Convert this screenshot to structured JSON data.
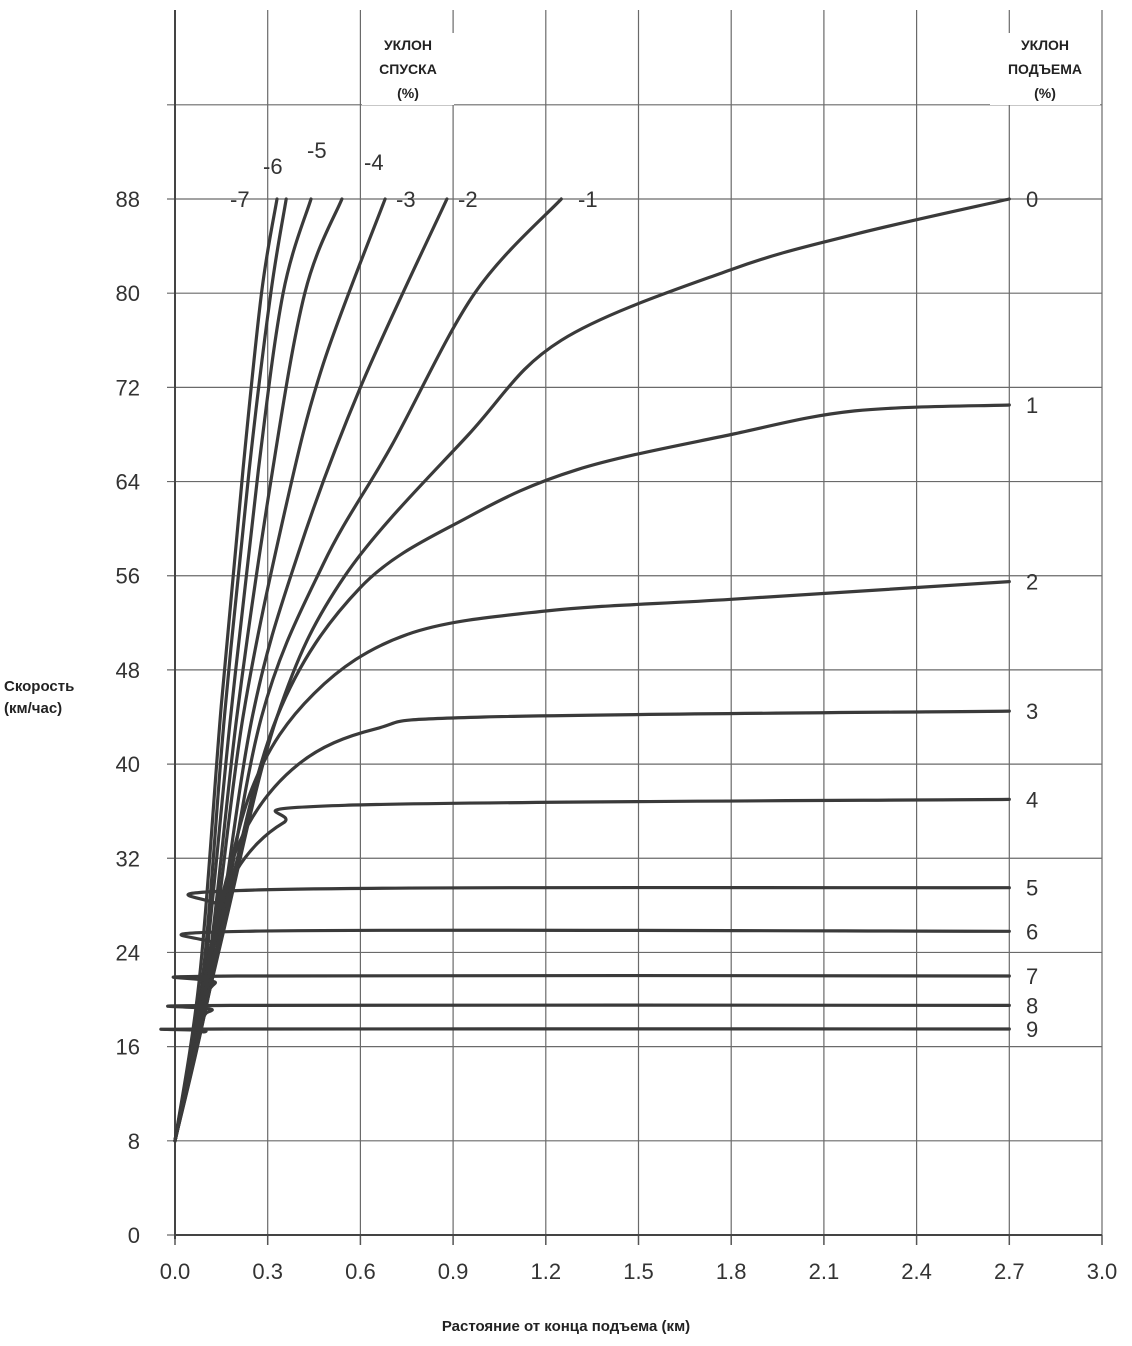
{
  "chart_data": {
    "type": "line",
    "title": "",
    "xlabel": "Растояние от конца подъема (км)",
    "ylabel": [
      "Скорость",
      "(км/час)"
    ],
    "xlim": [
      0,
      3.0
    ],
    "ylim": [
      0,
      96
    ],
    "x_ticks": [
      "0.0",
      "0.3",
      "0.6",
      "0.9",
      "1.2",
      "1.5",
      "1.8",
      "2.1",
      "2.4",
      "2.7",
      "3.0"
    ],
    "y_ticks": [
      "0",
      "8",
      "16",
      "24",
      "32",
      "40",
      "48",
      "56",
      "64",
      "72",
      "80",
      "88"
    ],
    "grid": true,
    "annotations": {
      "descent_header": [
        "УКЛОН",
        "СПУСКА",
        "(%)"
      ],
      "ascent_header": [
        "УКЛОН",
        "ПОДЪЕМА",
        "(%)"
      ]
    },
    "series": [
      {
        "name": "-7",
        "group": "descent",
        "points": [
          [
            0,
            8
          ],
          [
            0.08,
            22
          ],
          [
            0.15,
            45
          ],
          [
            0.22,
            65
          ],
          [
            0.28,
            80
          ],
          [
            0.33,
            88
          ]
        ]
      },
      {
        "name": "-6",
        "group": "descent",
        "points": [
          [
            0,
            8
          ],
          [
            0.09,
            22
          ],
          [
            0.16,
            44
          ],
          [
            0.24,
            65
          ],
          [
            0.31,
            80
          ],
          [
            0.36,
            88
          ]
        ]
      },
      {
        "name": "-5",
        "group": "descent",
        "points": [
          [
            0,
            8
          ],
          [
            0.09,
            21
          ],
          [
            0.18,
            44
          ],
          [
            0.27,
            65
          ],
          [
            0.35,
            80
          ],
          [
            0.44,
            88
          ]
        ]
      },
      {
        "name": "-4",
        "group": "descent",
        "points": [
          [
            0,
            8
          ],
          [
            0.1,
            21
          ],
          [
            0.2,
            44
          ],
          [
            0.31,
            64
          ],
          [
            0.42,
            80
          ],
          [
            0.54,
            88
          ]
        ]
      },
      {
        "name": "-3",
        "group": "descent",
        "points": [
          [
            0,
            8
          ],
          [
            0.11,
            22
          ],
          [
            0.22,
            44
          ],
          [
            0.36,
            62
          ],
          [
            0.48,
            74
          ],
          [
            0.68,
            88
          ]
        ]
      },
      {
        "name": "-2",
        "group": "descent",
        "points": [
          [
            0,
            8
          ],
          [
            0.12,
            22
          ],
          [
            0.25,
            44
          ],
          [
            0.4,
            58
          ],
          [
            0.6,
            72
          ],
          [
            0.88,
            88
          ]
        ]
      },
      {
        "name": "-1",
        "group": "descent",
        "points": [
          [
            0,
            8
          ],
          [
            0.13,
            23
          ],
          [
            0.28,
            44
          ],
          [
            0.48,
            57
          ],
          [
            0.7,
            67
          ],
          [
            0.97,
            80
          ],
          [
            1.25,
            88
          ]
        ]
      },
      {
        "name": "0",
        "group": "ascent",
        "points": [
          [
            0,
            8
          ],
          [
            0.15,
            25
          ],
          [
            0.33,
            44
          ],
          [
            0.55,
            56
          ],
          [
            0.95,
            68
          ],
          [
            1.25,
            76
          ],
          [
            1.8,
            82
          ],
          [
            2.2,
            85
          ],
          [
            2.7,
            88
          ]
        ]
      },
      {
        "name": "1",
        "group": "ascent",
        "points": [
          [
            0,
            8
          ],
          [
            0.15,
            26
          ],
          [
            0.33,
            44
          ],
          [
            0.6,
            55
          ],
          [
            0.95,
            61
          ],
          [
            1.3,
            65
          ],
          [
            1.8,
            68
          ],
          [
            2.2,
            70
          ],
          [
            2.7,
            70.5
          ]
        ]
      },
      {
        "name": "2",
        "group": "ascent",
        "points": [
          [
            0,
            8
          ],
          [
            0.13,
            25
          ],
          [
            0.25,
            38
          ],
          [
            0.45,
            46
          ],
          [
            0.75,
            51
          ],
          [
            1.2,
            53
          ],
          [
            1.8,
            54
          ],
          [
            2.7,
            55.5
          ]
        ]
      },
      {
        "name": "3",
        "group": "ascent",
        "points": [
          [
            0,
            8
          ],
          [
            0.12,
            25
          ],
          [
            0.22,
            34
          ],
          [
            0.4,
            40
          ],
          [
            0.65,
            43
          ],
          [
            1.0,
            44
          ],
          [
            2.7,
            44.5
          ]
        ]
      },
      {
        "name": "4",
        "group": "ascent",
        "points": [
          [
            0,
            8
          ],
          [
            0.12,
            25
          ],
          [
            0.2,
            31
          ],
          [
            0.35,
            35
          ],
          [
            0.55,
            36.5
          ],
          [
            2.7,
            37
          ]
        ]
      },
      {
        "name": "5",
        "group": "ascent",
        "points": [
          [
            0,
            8
          ],
          [
            0.1,
            22
          ],
          [
            0.16,
            27.5
          ],
          [
            0.25,
            29.3
          ],
          [
            2.7,
            29.5
          ]
        ]
      },
      {
        "name": "6",
        "group": "ascent",
        "points": [
          [
            0,
            8
          ],
          [
            0.1,
            21
          ],
          [
            0.14,
            24.5
          ],
          [
            0.23,
            25.8
          ],
          [
            2.7,
            25.8
          ]
        ]
      },
      {
        "name": "7",
        "group": "ascent",
        "points": [
          [
            0,
            8
          ],
          [
            0.09,
            19
          ],
          [
            0.13,
            21.4
          ],
          [
            0.2,
            22
          ],
          [
            2.7,
            22
          ]
        ]
      },
      {
        "name": "8",
        "group": "ascent",
        "points": [
          [
            0,
            8
          ],
          [
            0.08,
            17.5
          ],
          [
            0.12,
            19.1
          ],
          [
            0.18,
            19.5
          ],
          [
            2.7,
            19.5
          ]
        ]
      },
      {
        "name": "9",
        "group": "ascent",
        "points": [
          [
            0,
            8
          ],
          [
            0.07,
            16.2
          ],
          [
            0.1,
            17.3
          ],
          [
            0.16,
            17.5
          ],
          [
            2.7,
            17.5
          ]
        ]
      }
    ]
  }
}
